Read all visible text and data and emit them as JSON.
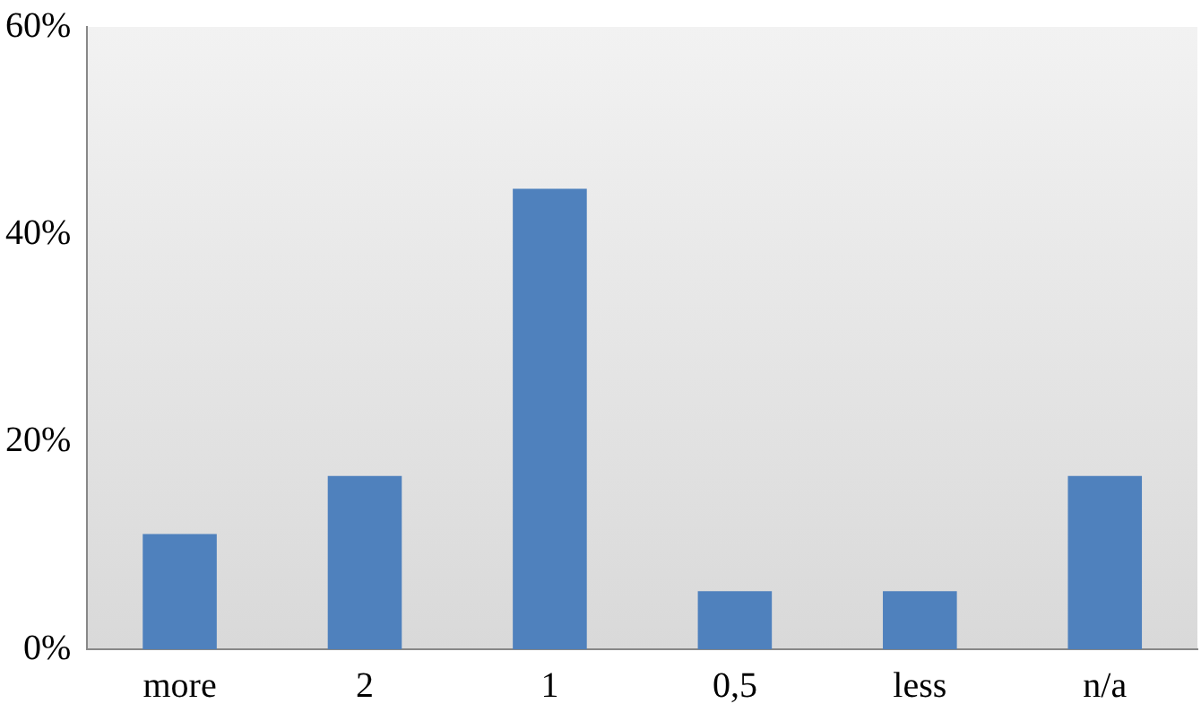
{
  "chart_data": {
    "type": "bar",
    "categories": [
      "more",
      "2",
      "1",
      "0,5",
      "less",
      "n/a"
    ],
    "values": [
      11.1,
      16.7,
      44.4,
      5.6,
      5.6,
      16.7
    ],
    "color": "#4f81bd",
    "ylim": [
      0,
      60
    ],
    "yticks": [
      {
        "value": 0,
        "label": "0%"
      },
      {
        "value": 20,
        "label": "20%"
      },
      {
        "value": 40,
        "label": "40%"
      },
      {
        "value": 60,
        "label": "60%"
      }
    ],
    "grid": false,
    "legend": false
  }
}
